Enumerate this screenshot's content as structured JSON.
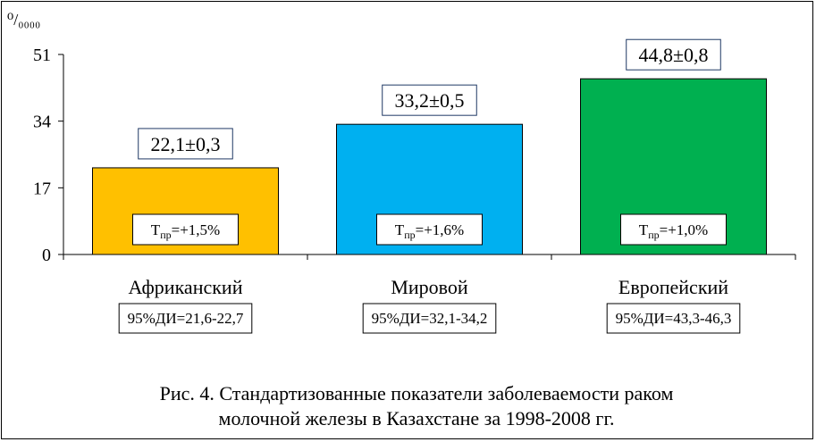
{
  "chart_data": {
    "type": "bar",
    "unit_label": "⁰/₀₀₀₀",
    "ylim": [
      0,
      51
    ],
    "yticks": [
      "0",
      "17",
      "34",
      "51"
    ],
    "categories": [
      "Африканский",
      "Мировой",
      "Европейский"
    ],
    "values": [
      22.1,
      33.2,
      44.8
    ],
    "colors": [
      "#FFC000",
      "#00B0F0",
      "#00B050"
    ],
    "value_labels": [
      "22,1±0,3",
      "33,2±0,5",
      "44,8±0,8"
    ],
    "growth_labels": [
      {
        "prefix": "Т",
        "sub": "пр",
        "suffix": "=+1,5%"
      },
      {
        "prefix": "Т",
        "sub": "пр",
        "suffix": "=+1,6%"
      },
      {
        "prefix": "Т",
        "sub": "пр",
        "suffix": "=+1,0%"
      }
    ],
    "ci_labels": [
      "95%ДИ=21,6-22,7",
      "95%ДИ=32,1-34,2",
      "95%ДИ=43,3-46,3"
    ],
    "caption": [
      "Рис. 4. Стандартизованные показатели заболеваемости раком",
      "молочной железы в Казахстане за 1998-2008 гг."
    ]
  }
}
